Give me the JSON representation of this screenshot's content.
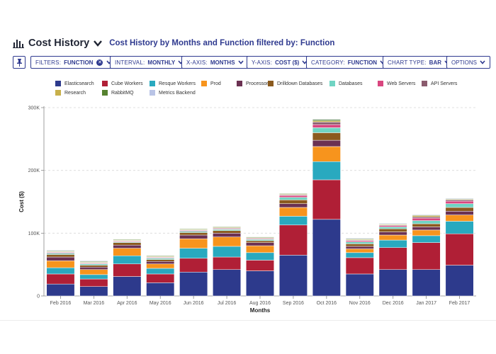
{
  "header": {
    "title": "Cost History",
    "subtitle": "Cost History by Months and Function filtered by: Function",
    "chart_icon": "bar-chart-icon",
    "dropdown_icon": "chevron-down-icon"
  },
  "toolbar": {
    "pin_icon": "pin-icon",
    "filters": {
      "key": "FILTERS:",
      "value": "FUNCTION"
    },
    "interval": {
      "key": "INTERVAL:",
      "value": "MONTHLY"
    },
    "xaxis": {
      "key": "X-AXIS:",
      "value": "MONTHS"
    },
    "yaxis": {
      "key": "Y-AXIS:",
      "value": "COST ($)"
    },
    "category": {
      "key": "CATEGORY:",
      "value": "FUNCTION"
    },
    "chart_type": {
      "key": "CHART TYPE:",
      "value": "BAR"
    },
    "options": {
      "value": "OPTIONS"
    }
  },
  "chart_data": {
    "type": "bar",
    "stacked": true,
    "xlabel": "Months",
    "ylabel": "Cost ($)",
    "ylim": [
      0,
      300000
    ],
    "yticks": [
      0,
      100000,
      200000,
      300000
    ],
    "ytick_labels": [
      "0",
      "100K",
      "200K",
      "300K"
    ],
    "grid": true,
    "legend_position": "top",
    "categories": [
      "Feb 2016",
      "Mar 2016",
      "Apr 2016",
      "May 2016",
      "Jun 2016",
      "Jul 2016",
      "Aug 2016",
      "Sep 2016",
      "Oct 2016",
      "Nov 2016",
      "Dec 2016",
      "Jan 2017",
      "Feb 2017"
    ],
    "series": [
      {
        "name": "Elasticsearch",
        "color": "#2d3a8c",
        "values": [
          19000,
          15000,
          31000,
          21000,
          38000,
          42000,
          40000,
          65000,
          122000,
          35000,
          42000,
          42000,
          49000
        ]
      },
      {
        "name": "Cube Workers",
        "color": "#b01f36",
        "values": [
          16000,
          12000,
          20000,
          14000,
          22000,
          20000,
          17000,
          48000,
          63000,
          26000,
          35000,
          43000,
          50000
        ]
      },
      {
        "name": "Resque Workers",
        "color": "#29a9bf",
        "values": [
          10000,
          7000,
          13000,
          9000,
          16000,
          17000,
          12000,
          14000,
          29000,
          8000,
          12000,
          11000,
          20000
        ]
      },
      {
        "name": "Prod",
        "color": "#f7941d",
        "values": [
          11000,
          8000,
          12000,
          7000,
          15000,
          15000,
          11000,
          14000,
          24000,
          6000,
          8000,
          9000,
          10000
        ]
      },
      {
        "name": "Processors",
        "color": "#6b3152",
        "values": [
          6000,
          4000,
          5000,
          4000,
          6000,
          6000,
          5000,
          6000,
          10000,
          4000,
          5000,
          5000,
          6000
        ]
      },
      {
        "name": "Drilldown Databases",
        "color": "#8b5a1e",
        "values": [
          4000,
          3000,
          4000,
          3000,
          4000,
          4000,
          3000,
          6000,
          12000,
          4000,
          5000,
          5000,
          6000
        ]
      },
      {
        "name": "Databases",
        "color": "#70d4c3",
        "values": [
          2000,
          2000,
          1000,
          2000,
          2000,
          2000,
          2000,
          4000,
          8000,
          3000,
          3000,
          5000,
          6000
        ]
      },
      {
        "name": "Web Servers",
        "color": "#d9467f",
        "values": [
          1000,
          1000,
          1000,
          1000,
          1000,
          1000,
          1000,
          3000,
          5000,
          2000,
          2000,
          4000,
          4000
        ]
      },
      {
        "name": "API Servers",
        "color": "#8a5b6d",
        "values": [
          1000,
          1000,
          1000,
          1000,
          1000,
          1000,
          1000,
          1000,
          4000,
          1000,
          1000,
          2000,
          2000
        ]
      },
      {
        "name": "Research",
        "color": "#c8b04a",
        "values": [
          1000,
          1000,
          1000,
          1000,
          1000,
          1000,
          1000,
          1000,
          2000,
          1000,
          1000,
          2000,
          1000
        ]
      },
      {
        "name": "RabbitMQ",
        "color": "#56822f",
        "values": [
          1000,
          1000,
          1000,
          1000,
          1000,
          1000,
          1000,
          1000,
          2000,
          1000,
          1000,
          1000,
          1000
        ]
      },
      {
        "name": "Metrics Backend",
        "color": "#b9c4e6",
        "values": [
          1000,
          1000,
          0,
          0,
          0,
          0,
          0,
          0,
          1000,
          1000,
          1000,
          1000,
          1000
        ]
      }
    ]
  }
}
